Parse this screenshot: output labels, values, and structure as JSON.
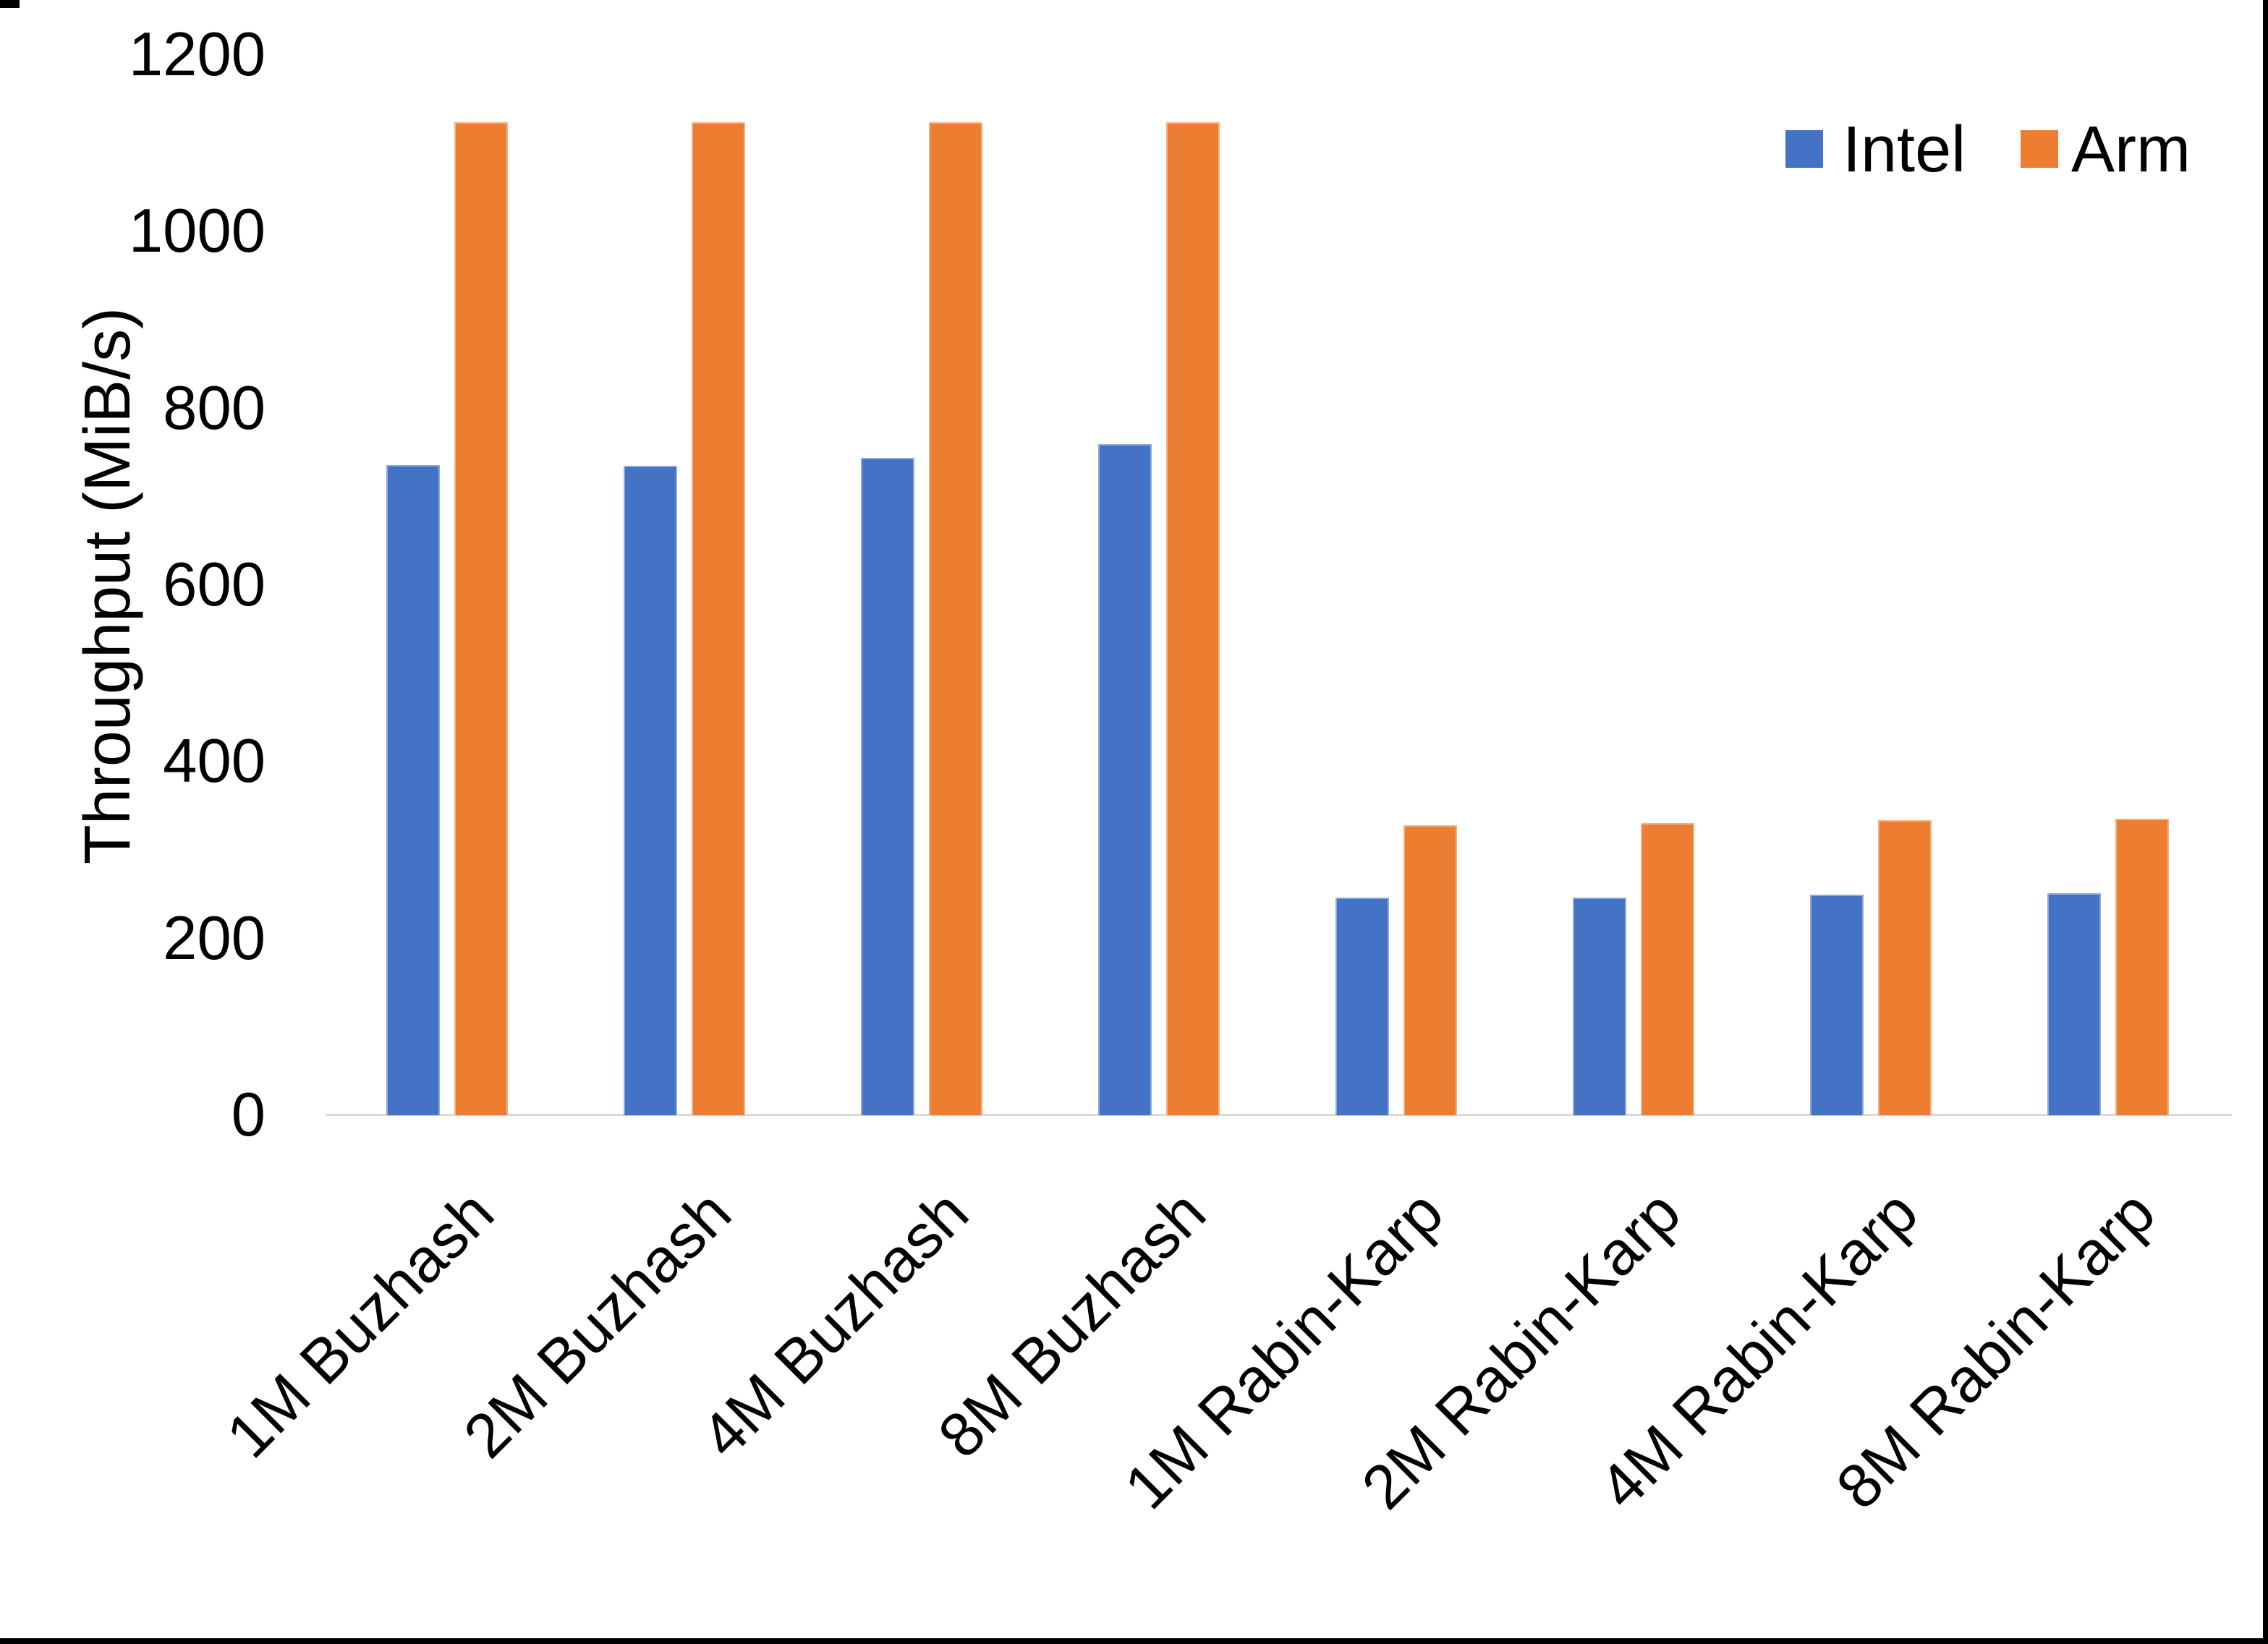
{
  "chart_data": {
    "type": "bar",
    "title": "",
    "ylabel": "Throughput (MiB/s)",
    "xlabel": "",
    "ylim": [
      0,
      1200
    ],
    "yticks": [
      0,
      200,
      400,
      600,
      800,
      1000,
      1200
    ],
    "grid": false,
    "legend_position": "top-right",
    "categories": [
      "1M Buzhash",
      "2M Buzhash",
      "4M Buzhash",
      "8M Buzhash",
      "1M Rabin-Karp",
      "2M Rabin-Karp",
      "4M Rabin-Karp",
      "8M Rabin-Karp"
    ],
    "series": [
      {
        "name": "Intel",
        "color": "#4472C4",
        "values": [
          736,
          735,
          744,
          760,
          246,
          246,
          250,
          251
        ]
      },
      {
        "name": "Arm",
        "color": "#ED7D31",
        "values": [
          1124,
          1124,
          1124,
          1124,
          328,
          331,
          334,
          336
        ]
      }
    ]
  },
  "colors": {
    "axis_line": "#D9D9D9",
    "text": "#000000",
    "frame_edges": "#000000"
  }
}
